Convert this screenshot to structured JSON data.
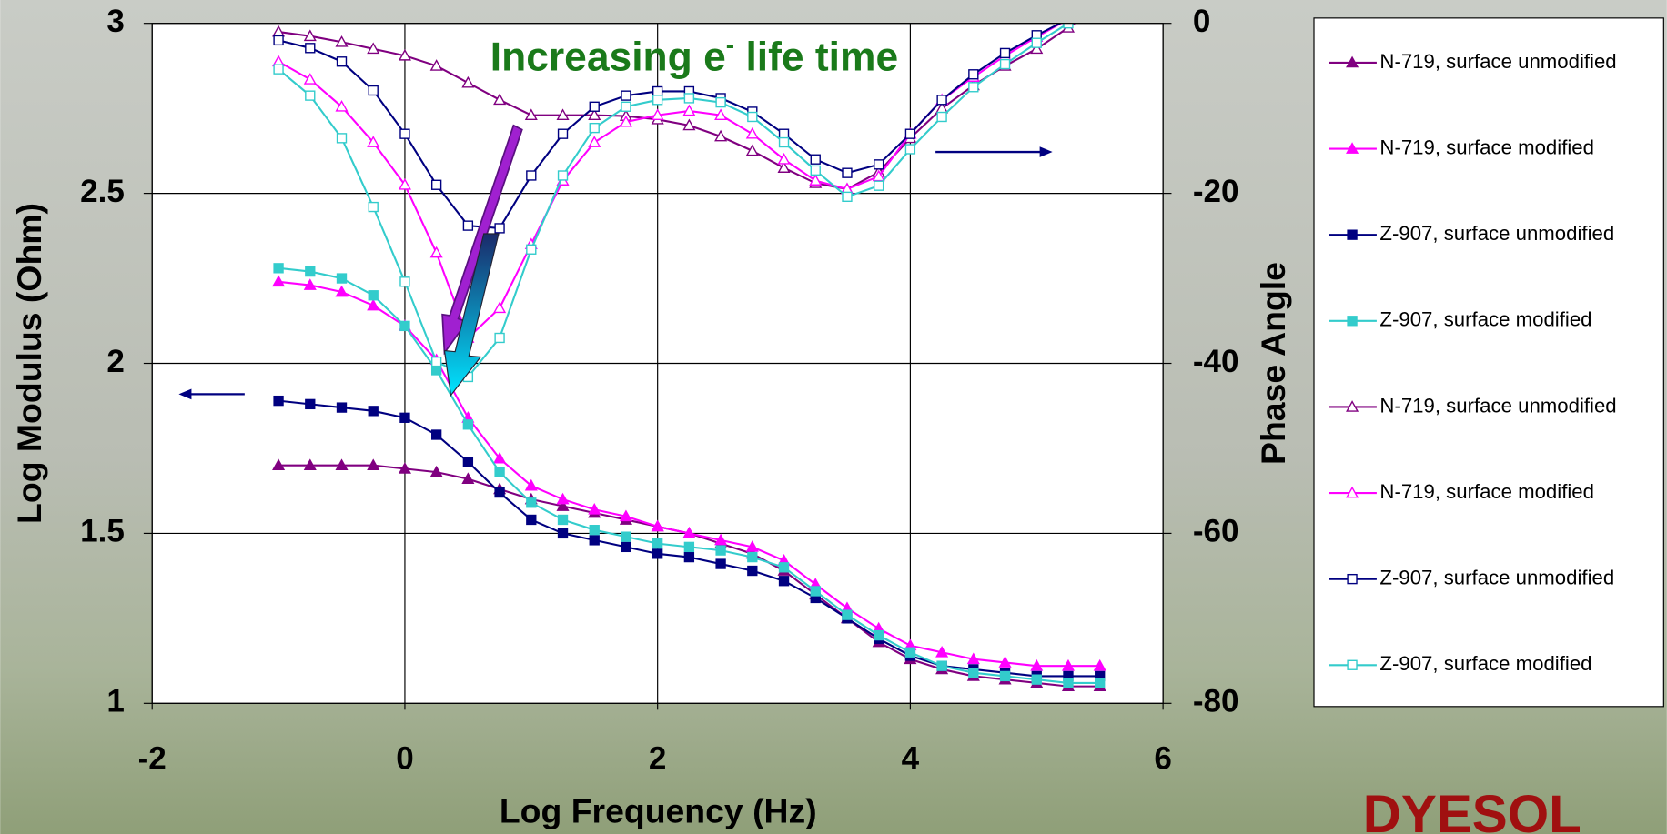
{
  "chart_data": {
    "type": "line",
    "annotation": [
      "Increasing e",
      "-",
      " life time"
    ],
    "x_label": "Log Frequency (Hz)",
    "y_label": "Log Modulus (Ohm)",
    "y2_label": "Phase Angle",
    "logo": "DYESOL",
    "x": [
      -1,
      -0.75,
      -0.5,
      -0.25,
      0,
      0.25,
      0.5,
      0.75,
      1,
      1.25,
      1.5,
      1.75,
      2,
      2.25,
      2.5,
      2.75,
      3,
      3.25,
      3.5,
      3.75,
      4,
      4.25,
      4.5,
      4.75,
      5,
      5.25,
      5.5
    ],
    "xlim": [
      -2,
      6
    ],
    "xticks": [
      -2,
      0,
      2,
      4,
      6
    ],
    "ylim": [
      1,
      3
    ],
    "yticks": [
      1,
      1.5,
      2,
      2.5,
      3
    ],
    "y2lim": [
      -80,
      0
    ],
    "y2ticks": [
      -80,
      -60,
      -40,
      -20,
      0
    ],
    "grid": true,
    "series": [
      {
        "name": "N-719, surface unmodified",
        "color": "#800080",
        "marker": "triangle",
        "filled": true,
        "values": [
          1.7,
          1.7,
          1.7,
          1.7,
          1.69,
          1.68,
          1.66,
          1.63,
          1.6,
          1.58,
          1.56,
          1.54,
          1.52,
          1.5,
          1.47,
          1.44,
          1.39,
          1.32,
          1.25,
          1.18,
          1.13,
          1.1,
          1.08,
          1.07,
          1.06,
          1.05,
          1.05
        ]
      },
      {
        "name": "N-719, surface modified",
        "color": "#ff00ff",
        "marker": "triangle",
        "filled": true,
        "values": [
          2.24,
          2.23,
          2.21,
          2.17,
          2.11,
          2.01,
          1.84,
          1.72,
          1.64,
          1.6,
          1.57,
          1.55,
          1.52,
          1.5,
          1.48,
          1.46,
          1.42,
          1.35,
          1.28,
          1.22,
          1.17,
          1.15,
          1.13,
          1.12,
          1.11,
          1.11,
          1.11
        ]
      },
      {
        "name": "Z-907, surface unmodified",
        "color": "#000080",
        "marker": "square",
        "filled": true,
        "values": [
          1.89,
          1.88,
          1.87,
          1.86,
          1.84,
          1.79,
          1.71,
          1.62,
          1.54,
          1.5,
          1.48,
          1.46,
          1.44,
          1.43,
          1.41,
          1.39,
          1.36,
          1.31,
          1.25,
          1.19,
          1.14,
          1.11,
          1.1,
          1.09,
          1.08,
          1.08,
          1.08
        ]
      },
      {
        "name": "Z-907, surface modified",
        "color": "#33cccc",
        "marker": "square",
        "filled": true,
        "values": [
          2.28,
          2.27,
          2.25,
          2.2,
          2.11,
          1.98,
          1.82,
          1.68,
          1.59,
          1.54,
          1.51,
          1.49,
          1.47,
          1.46,
          1.45,
          1.43,
          1.4,
          1.33,
          1.26,
          1.2,
          1.15,
          1.11,
          1.09,
          1.08,
          1.07,
          1.06,
          1.06
        ]
      },
      {
        "name": "N-719, surface unmodified",
        "color": "#800080",
        "marker": "triangle",
        "filled": false,
        "axis": "y2",
        "values": [
          -1,
          -1.5,
          -2.2,
          -3,
          -3.8,
          -5,
          -7,
          -9,
          -10.8,
          -10.8,
          -10.8,
          -10.9,
          -11.3,
          -12,
          -13.3,
          -15,
          -17,
          -18.8,
          -19.5,
          -17.5,
          -13.5,
          -10,
          -7.3,
          -5,
          -3,
          -0.5,
          2
        ]
      },
      {
        "name": "N-719, surface modified",
        "color": "#ff00ff",
        "marker": "triangle",
        "filled": false,
        "axis": "y2",
        "values": [
          -4.5,
          -6.6,
          -9.8,
          -14,
          -19,
          -27,
          -37,
          -33.5,
          -26,
          -18.5,
          -14,
          -11.6,
          -10.8,
          -10.3,
          -10.8,
          -13,
          -16,
          -18.5,
          -19.5,
          -18,
          -13,
          -9,
          -6.3,
          -3.8,
          -1.6,
          0.5,
          2
        ]
      },
      {
        "name": "Z-907, surface unmodified",
        "color": "#000080",
        "marker": "square",
        "filled": false,
        "axis": "y2",
        "values": [
          -2,
          -2.9,
          -4.5,
          -7.9,
          -13,
          -19,
          -23.8,
          -24.1,
          -17.9,
          -13,
          -9.8,
          -8.5,
          -8,
          -8,
          -8.8,
          -10.4,
          -13,
          -16,
          -17.6,
          -16.6,
          -13,
          -9,
          -6,
          -3.5,
          -1.4,
          0.5,
          2
        ]
      },
      {
        "name": "Z-907, surface modified",
        "color": "#33cccc",
        "marker": "square",
        "filled": false,
        "axis": "y2",
        "values": [
          -5.4,
          -8.5,
          -13.5,
          -21.6,
          -30.4,
          -39.8,
          -41.6,
          -37,
          -26.6,
          -17.9,
          -12.3,
          -9.8,
          -9,
          -8.8,
          -9.3,
          -11,
          -14,
          -17.3,
          -20.4,
          -19.1,
          -14.8,
          -11,
          -7.5,
          -4.8,
          -2.3,
          0,
          2
        ]
      }
    ]
  }
}
